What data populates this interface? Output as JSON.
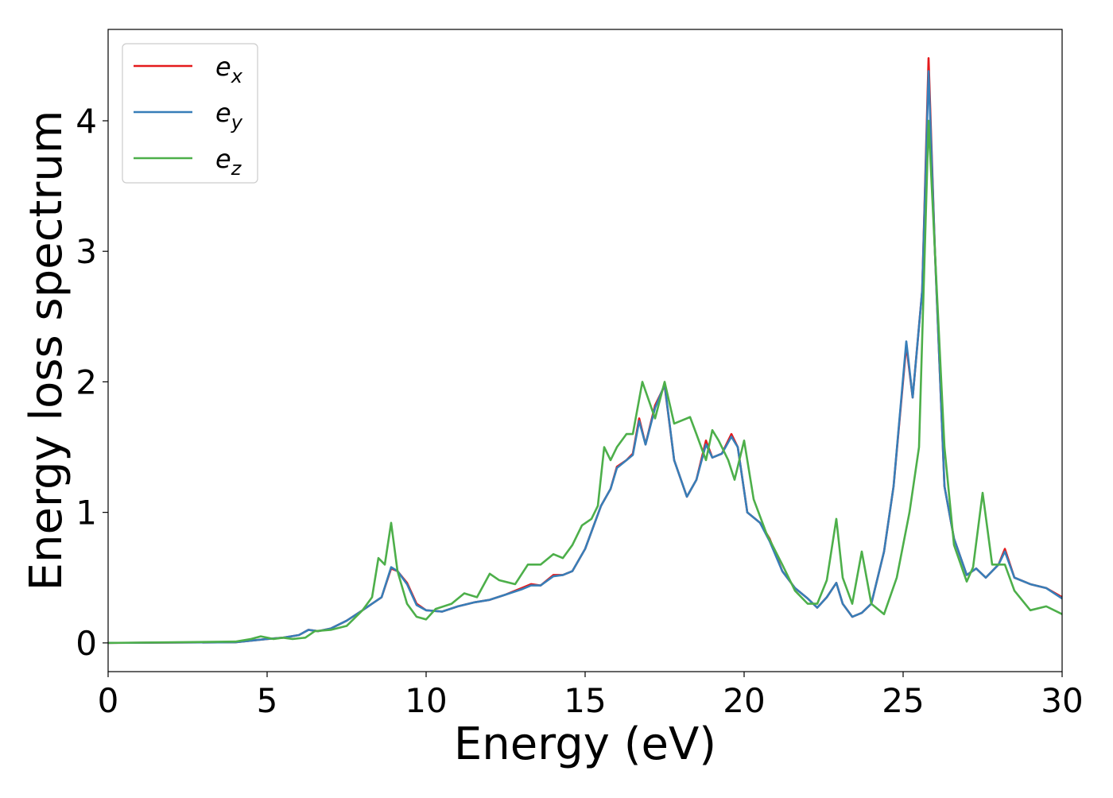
{
  "chart_data": {
    "type": "line",
    "title": "",
    "xlabel": "Energy (eV)",
    "ylabel": "Energy loss spectrum",
    "xlim": [
      0,
      30
    ],
    "ylim": [
      -0.22,
      4.7
    ],
    "xticks": [
      0,
      5,
      10,
      15,
      20,
      25,
      30
    ],
    "yticks": [
      0,
      1,
      2,
      3,
      4
    ],
    "grid": false,
    "legend_position": "top-left",
    "series": [
      {
        "name": "e_x",
        "label_main": "e",
        "label_sub": "x",
        "color": "#e41a1c",
        "points": [
          [
            0,
            0
          ],
          [
            4,
            0.005
          ],
          [
            5,
            0.03
          ],
          [
            5.5,
            0.04
          ],
          [
            6,
            0.06
          ],
          [
            6.3,
            0.1
          ],
          [
            6.6,
            0.09
          ],
          [
            7,
            0.11
          ],
          [
            7.5,
            0.17
          ],
          [
            8,
            0.25
          ],
          [
            8.3,
            0.3
          ],
          [
            8.6,
            0.35
          ],
          [
            8.9,
            0.57
          ],
          [
            9.1,
            0.55
          ],
          [
            9.4,
            0.46
          ],
          [
            9.7,
            0.3
          ],
          [
            10,
            0.25
          ],
          [
            10.5,
            0.24
          ],
          [
            11,
            0.28
          ],
          [
            11.5,
            0.31
          ],
          [
            12,
            0.33
          ],
          [
            12.5,
            0.37
          ],
          [
            13,
            0.42
          ],
          [
            13.3,
            0.45
          ],
          [
            13.6,
            0.44
          ],
          [
            14,
            0.52
          ],
          [
            14.3,
            0.52
          ],
          [
            14.6,
            0.55
          ],
          [
            15,
            0.72
          ],
          [
            15.5,
            1.05
          ],
          [
            15.8,
            1.18
          ],
          [
            16,
            1.35
          ],
          [
            16.3,
            1.4
          ],
          [
            16.5,
            1.45
          ],
          [
            16.7,
            1.72
          ],
          [
            16.9,
            1.52
          ],
          [
            17.2,
            1.82
          ],
          [
            17.5,
            1.97
          ],
          [
            17.8,
            1.4
          ],
          [
            18.2,
            1.12
          ],
          [
            18.5,
            1.25
          ],
          [
            18.8,
            1.55
          ],
          [
            19,
            1.42
          ],
          [
            19.3,
            1.45
          ],
          [
            19.6,
            1.6
          ],
          [
            19.8,
            1.5
          ],
          [
            20.1,
            1.0
          ],
          [
            20.5,
            0.92
          ],
          [
            20.8,
            0.8
          ],
          [
            21.2,
            0.55
          ],
          [
            21.6,
            0.42
          ],
          [
            22,
            0.34
          ],
          [
            22.3,
            0.27
          ],
          [
            22.6,
            0.35
          ],
          [
            22.9,
            0.46
          ],
          [
            23.1,
            0.3
          ],
          [
            23.4,
            0.2
          ],
          [
            23.7,
            0.23
          ],
          [
            24,
            0.3
          ],
          [
            24.4,
            0.7
          ],
          [
            24.7,
            1.2
          ],
          [
            25.1,
            2.28
          ],
          [
            25.3,
            1.88
          ],
          [
            25.6,
            2.7
          ],
          [
            25.8,
            4.48
          ],
          [
            26,
            3.0
          ],
          [
            26.3,
            1.2
          ],
          [
            26.6,
            0.8
          ],
          [
            27,
            0.52
          ],
          [
            27.3,
            0.57
          ],
          [
            27.6,
            0.5
          ],
          [
            28,
            0.6
          ],
          [
            28.2,
            0.72
          ],
          [
            28.5,
            0.5
          ],
          [
            29,
            0.45
          ],
          [
            29.5,
            0.42
          ],
          [
            30,
            0.35
          ]
        ]
      },
      {
        "name": "e_y",
        "label_main": "e",
        "label_sub": "y",
        "color": "#377eb8",
        "points": [
          [
            0,
            0
          ],
          [
            4,
            0.005
          ],
          [
            5,
            0.03
          ],
          [
            5.5,
            0.04
          ],
          [
            6,
            0.06
          ],
          [
            6.3,
            0.1
          ],
          [
            6.6,
            0.09
          ],
          [
            7,
            0.11
          ],
          [
            7.5,
            0.17
          ],
          [
            8,
            0.25
          ],
          [
            8.3,
            0.3
          ],
          [
            8.6,
            0.35
          ],
          [
            8.9,
            0.58
          ],
          [
            9.1,
            0.55
          ],
          [
            9.4,
            0.45
          ],
          [
            9.7,
            0.29
          ],
          [
            10,
            0.25
          ],
          [
            10.5,
            0.24
          ],
          [
            11,
            0.28
          ],
          [
            11.5,
            0.31
          ],
          [
            12,
            0.33
          ],
          [
            12.5,
            0.37
          ],
          [
            13,
            0.41
          ],
          [
            13.3,
            0.44
          ],
          [
            13.6,
            0.44
          ],
          [
            14,
            0.51
          ],
          [
            14.3,
            0.52
          ],
          [
            14.6,
            0.55
          ],
          [
            15,
            0.72
          ],
          [
            15.5,
            1.05
          ],
          [
            15.8,
            1.18
          ],
          [
            16,
            1.34
          ],
          [
            16.3,
            1.4
          ],
          [
            16.5,
            1.44
          ],
          [
            16.7,
            1.7
          ],
          [
            16.9,
            1.52
          ],
          [
            17.2,
            1.8
          ],
          [
            17.5,
            1.98
          ],
          [
            17.8,
            1.4
          ],
          [
            18.2,
            1.12
          ],
          [
            18.5,
            1.25
          ],
          [
            18.8,
            1.52
          ],
          [
            19,
            1.42
          ],
          [
            19.3,
            1.45
          ],
          [
            19.6,
            1.58
          ],
          [
            19.8,
            1.5
          ],
          [
            20.1,
            1.0
          ],
          [
            20.5,
            0.92
          ],
          [
            20.8,
            0.78
          ],
          [
            21.2,
            0.55
          ],
          [
            21.6,
            0.42
          ],
          [
            22,
            0.34
          ],
          [
            22.3,
            0.27
          ],
          [
            22.6,
            0.35
          ],
          [
            22.9,
            0.46
          ],
          [
            23.1,
            0.3
          ],
          [
            23.4,
            0.2
          ],
          [
            23.7,
            0.23
          ],
          [
            24,
            0.3
          ],
          [
            24.4,
            0.7
          ],
          [
            24.7,
            1.2
          ],
          [
            25.1,
            2.31
          ],
          [
            25.3,
            1.88
          ],
          [
            25.6,
            2.7
          ],
          [
            25.8,
            4.38
          ],
          [
            26,
            3.0
          ],
          [
            26.3,
            1.2
          ],
          [
            26.6,
            0.8
          ],
          [
            27,
            0.52
          ],
          [
            27.3,
            0.57
          ],
          [
            27.6,
            0.5
          ],
          [
            28,
            0.6
          ],
          [
            28.2,
            0.7
          ],
          [
            28.5,
            0.5
          ],
          [
            29,
            0.45
          ],
          [
            29.5,
            0.42
          ],
          [
            30,
            0.34
          ]
        ]
      },
      {
        "name": "e_z",
        "label_main": "e",
        "label_sub": "z",
        "color": "#4daf4a",
        "points": [
          [
            0,
            0
          ],
          [
            4,
            0.01
          ],
          [
            4.5,
            0.03
          ],
          [
            4.8,
            0.05
          ],
          [
            5.2,
            0.03
          ],
          [
            5.5,
            0.04
          ],
          [
            5.8,
            0.03
          ],
          [
            6.2,
            0.04
          ],
          [
            6.5,
            0.09
          ],
          [
            7,
            0.1
          ],
          [
            7.5,
            0.13
          ],
          [
            8,
            0.25
          ],
          [
            8.3,
            0.35
          ],
          [
            8.5,
            0.65
          ],
          [
            8.7,
            0.6
          ],
          [
            8.9,
            0.92
          ],
          [
            9.1,
            0.55
          ],
          [
            9.4,
            0.3
          ],
          [
            9.7,
            0.2
          ],
          [
            10,
            0.18
          ],
          [
            10.3,
            0.26
          ],
          [
            10.8,
            0.3
          ],
          [
            11.2,
            0.38
          ],
          [
            11.6,
            0.35
          ],
          [
            12,
            0.53
          ],
          [
            12.3,
            0.48
          ],
          [
            12.8,
            0.45
          ],
          [
            13.2,
            0.6
          ],
          [
            13.6,
            0.6
          ],
          [
            14,
            0.68
          ],
          [
            14.3,
            0.65
          ],
          [
            14.6,
            0.75
          ],
          [
            14.9,
            0.9
          ],
          [
            15.2,
            0.95
          ],
          [
            15.4,
            1.05
          ],
          [
            15.6,
            1.5
          ],
          [
            15.8,
            1.4
          ],
          [
            16,
            1.5
          ],
          [
            16.3,
            1.6
          ],
          [
            16.5,
            1.6
          ],
          [
            16.8,
            2.0
          ],
          [
            17.2,
            1.72
          ],
          [
            17.5,
            2.0
          ],
          [
            17.8,
            1.68
          ],
          [
            18.3,
            1.73
          ],
          [
            18.5,
            1.6
          ],
          [
            18.8,
            1.4
          ],
          [
            19,
            1.63
          ],
          [
            19.2,
            1.55
          ],
          [
            19.5,
            1.4
          ],
          [
            19.7,
            1.25
          ],
          [
            20,
            1.55
          ],
          [
            20.3,
            1.1
          ],
          [
            20.7,
            0.84
          ],
          [
            21.2,
            0.6
          ],
          [
            21.6,
            0.4
          ],
          [
            22,
            0.3
          ],
          [
            22.3,
            0.3
          ],
          [
            22.6,
            0.48
          ],
          [
            22.9,
            0.95
          ],
          [
            23.1,
            0.5
          ],
          [
            23.4,
            0.3
          ],
          [
            23.7,
            0.7
          ],
          [
            24,
            0.3
          ],
          [
            24.4,
            0.22
          ],
          [
            24.8,
            0.5
          ],
          [
            25.2,
            1.0
          ],
          [
            25.5,
            1.5
          ],
          [
            25.8,
            4.0
          ],
          [
            26,
            3.0
          ],
          [
            26.3,
            1.5
          ],
          [
            26.6,
            0.75
          ],
          [
            27,
            0.47
          ],
          [
            27.2,
            0.58
          ],
          [
            27.5,
            1.15
          ],
          [
            27.8,
            0.6
          ],
          [
            28.2,
            0.6
          ],
          [
            28.5,
            0.4
          ],
          [
            29,
            0.25
          ],
          [
            29.5,
            0.28
          ],
          [
            30,
            0.22
          ]
        ]
      }
    ]
  }
}
